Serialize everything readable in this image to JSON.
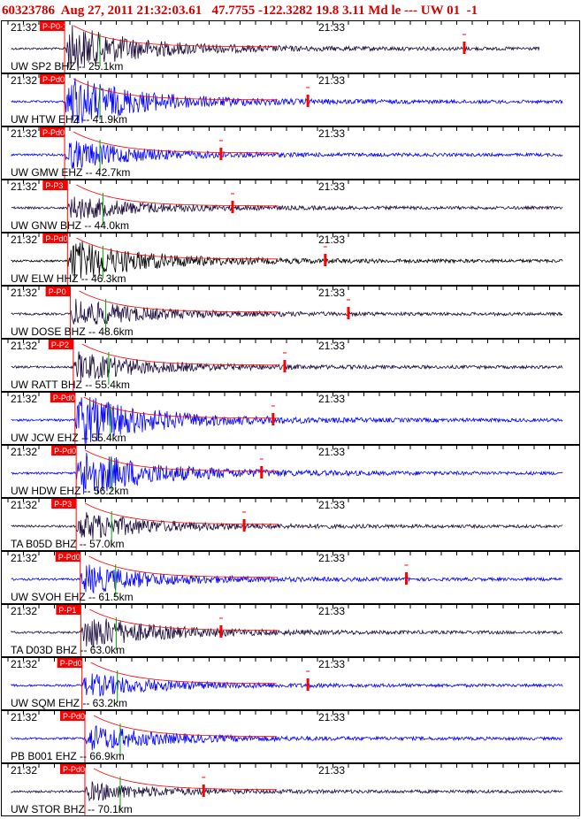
{
  "header": {
    "event_id": "60323786",
    "origin": "Aug 27, 2011 21:32:03.61",
    "lat_lon_depth": "47.7755 -122.3282 19.8",
    "magnitude": "3.11 Md le",
    "network_info": "--- UW 01  -1"
  },
  "chart_data": {
    "type": "line",
    "title": "60323786 Aug 27, 2011 21:32:03.61  47.7755 -122.3282 19.8 3.11 Md le --- UW 01 -1",
    "time_tick_labels": [
      "21:32",
      "21:33"
    ],
    "colors": {
      "frame": "#000000",
      "pick": "#ff0000",
      "pick_label": "#ffffff",
      "blue_trace": "#0000ff",
      "dark_trace": "#1a0a3c",
      "black_trace": "#000000",
      "green_marker": "#00a000",
      "coda": "#ff0000"
    },
    "series": [
      {
        "label": "UW SP2 BHZ -- 25.1km",
        "pick": "P-P0-1",
        "color": "dark",
        "arrival": 0.11,
        "peak": 0.9,
        "end": 0.93,
        "coda_mark": 0.8
      },
      {
        "label": "UW HTW EHZ -- 41.9km",
        "pick": "P-Pd0",
        "color": "blue",
        "arrival": 0.11,
        "peak": 1.0,
        "end": 0.97,
        "coda_mark": 0.53
      },
      {
        "label": "UW GMW EHZ -- 42.7km",
        "pick": "P-Pd0",
        "color": "blue",
        "arrival": 0.11,
        "peak": 0.55,
        "end": 0.97,
        "coda_mark": 0.38
      },
      {
        "label": "UW GNW BHZ -- 44.0km",
        "pick": "P-P3",
        "color": "dark",
        "arrival": 0.115,
        "peak": 0.45,
        "end": 0.97,
        "coda_mark": 0.4
      },
      {
        "label": "UW ELW HHZ -- 46.3km",
        "pick": "P-Pd0",
        "color": "black",
        "arrival": 0.115,
        "peak": 0.8,
        "end": 0.97,
        "coda_mark": 0.56
      },
      {
        "label": "UW DOSE BHZ -- 48.6km",
        "pick": "P-P0",
        "color": "dark",
        "arrival": 0.12,
        "peak": 0.55,
        "end": 0.97,
        "coda_mark": 0.6
      },
      {
        "label": "UW RATT BHZ -- 55.4km",
        "pick": "P-P2",
        "color": "dark",
        "arrival": 0.125,
        "peak": 0.55,
        "end": 0.97,
        "coda_mark": 0.49
      },
      {
        "label": "UW JCW EHZ -- 55.4km",
        "pick": "P-Pd0",
        "color": "blue",
        "arrival": 0.128,
        "peak": 1.0,
        "end": 0.97,
        "coda_mark": 0.47
      },
      {
        "label": "UW HDW EHZ -- 56.2km",
        "pick": "P-Pd0",
        "color": "blue",
        "arrival": 0.13,
        "peak": 0.95,
        "end": 0.97,
        "coda_mark": 0.45
      },
      {
        "label": "TA B05D BHZ -- 57.0km",
        "pick": "P-P3",
        "color": "dark",
        "arrival": 0.13,
        "peak": 0.55,
        "end": 0.97,
        "coda_mark": 0.42
      },
      {
        "label": "UW SVOH EHZ -- 61.5km",
        "pick": "P-Pd0",
        "color": "blue",
        "arrival": 0.137,
        "peak": 0.55,
        "end": 0.97,
        "coda_mark": 0.7
      },
      {
        "label": "TA D03D BHZ -- 63.0km",
        "pick": "P-P1",
        "color": "dark",
        "arrival": 0.138,
        "peak": 0.65,
        "end": 0.97,
        "coda_mark": 0.38
      },
      {
        "label": "UW SQM EHZ -- 63.2km",
        "pick": "P-Pd0",
        "color": "blue",
        "arrival": 0.14,
        "peak": 0.45,
        "end": 0.97,
        "coda_mark": 0.53
      },
      {
        "label": "PB B001 EHZ -- 66.9km",
        "pick": "P-Pd0",
        "color": "blue",
        "arrival": 0.145,
        "peak": 0.5,
        "end": 0.97,
        "coda_mark": null
      },
      {
        "label": "UW STOR BHZ -- 70.1km",
        "pick": "P-Pd0",
        "color": "dark",
        "arrival": 0.145,
        "peak": 0.35,
        "end": 0.97,
        "coda_mark": 0.35
      }
    ]
  }
}
